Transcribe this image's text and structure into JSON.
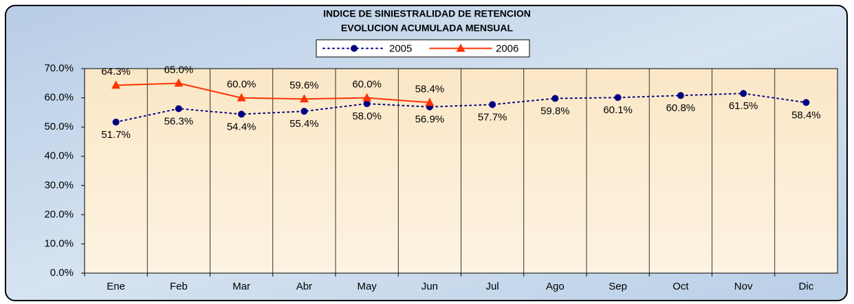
{
  "chart_data": {
    "type": "line",
    "title": "INDICE DE SINIESTRALIDAD DE RETENCION",
    "subtitle": "EVOLUCION ACUMULADA MENSUAL",
    "categories": [
      "Ene",
      "Feb",
      "Mar",
      "Abr",
      "May",
      "Jun",
      "Jul",
      "Ago",
      "Sep",
      "Oct",
      "Nov",
      "Dic"
    ],
    "series": [
      {
        "name": "2005",
        "color": "#000080",
        "marker": "circle",
        "dash": "dotted",
        "label_position": "below",
        "values": [
          51.7,
          56.3,
          54.4,
          55.4,
          58.0,
          56.9,
          57.7,
          59.8,
          60.1,
          60.8,
          61.5,
          58.4
        ],
        "value_labels": [
          "51.7%",
          "56.3%",
          "54.4%",
          "55.4%",
          "58.0%",
          "56.9%",
          "57.7%",
          "59.8%",
          "60.1%",
          "60.8%",
          "61.5%",
          "58.4%"
        ]
      },
      {
        "name": "2006",
        "color": "#ff3300",
        "marker": "triangle",
        "dash": "solid",
        "label_position": "above",
        "values": [
          64.3,
          65.0,
          60.0,
          59.6,
          60.0,
          58.4,
          null,
          null,
          null,
          null,
          null,
          null
        ],
        "value_labels": [
          "64.3%",
          "65.0%",
          "60.0%",
          "59.6%",
          "60.0%",
          "58.4%",
          null,
          null,
          null,
          null,
          null,
          null
        ]
      }
    ],
    "ylim": [
      0,
      70
    ],
    "yticks": [
      {
        "value": 0,
        "label": "0.0%"
      },
      {
        "value": 10,
        "label": "10.0%"
      },
      {
        "value": 20,
        "label": "20.0%"
      },
      {
        "value": 30,
        "label": "30.0%"
      },
      {
        "value": 40,
        "label": "40.0%"
      },
      {
        "value": 50,
        "label": "50.0%"
      },
      {
        "value": 60,
        "label": "60.0%"
      },
      {
        "value": 70,
        "label": "70.0%"
      }
    ],
    "legend": "top"
  }
}
